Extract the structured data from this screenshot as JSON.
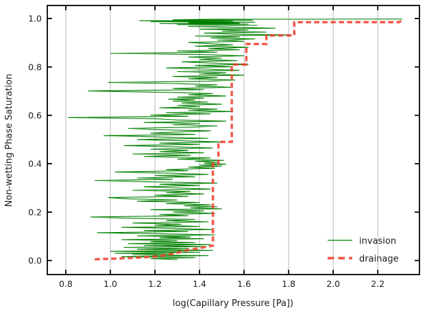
{
  "figure": {
    "background": "#ffffff",
    "text_color": "#1a1a1a",
    "grid_color": "#b0b0b0",
    "spine_color": "#000000"
  },
  "chart_data": {
    "type": "line",
    "title": "",
    "xlabel": "log(Capillary Pressure [Pa])",
    "ylabel": "Non-wetting Phase Saturation",
    "xlim": [
      0.717,
      2.387
    ],
    "ylim": [
      -0.058,
      1.054
    ],
    "x_ticks": [
      0.8,
      1.0,
      1.2,
      1.4,
      1.6,
      1.8,
      2.0,
      2.2
    ],
    "y_ticks": [
      0.0,
      0.2,
      0.4,
      0.6,
      0.8,
      1.0
    ],
    "grid": "vertical-only",
    "tick_direction": "in",
    "legend_position": "lower right",
    "legend_frame": false,
    "series": [
      {
        "name": "invasion",
        "color": "#008000",
        "opacity": 1,
        "line_style": "solid",
        "line_width": 1.1,
        "points": [
          [
            1.3,
            0.004
          ],
          [
            1.18,
            0.008
          ],
          [
            1.38,
            0.012
          ],
          [
            1.05,
            0.016
          ],
          [
            1.44,
            0.02
          ],
          [
            1.1,
            0.024
          ],
          [
            1.27,
            0.027
          ],
          [
            1.02,
            0.03
          ],
          [
            1.4,
            0.034
          ],
          [
            1.0,
            0.038
          ],
          [
            1.46,
            0.042
          ],
          [
            1.12,
            0.046
          ],
          [
            1.35,
            0.05
          ],
          [
            1.06,
            0.054
          ],
          [
            1.43,
            0.058
          ],
          [
            1.15,
            0.062
          ],
          [
            1.45,
            0.066
          ],
          [
            1.08,
            0.07
          ],
          [
            1.38,
            0.074
          ],
          [
            1.18,
            0.078
          ],
          [
            1.3,
            0.082
          ],
          [
            1.05,
            0.086
          ],
          [
            1.42,
            0.09
          ],
          [
            1.22,
            0.094
          ],
          [
            1.36,
            0.098
          ],
          [
            1.12,
            0.102
          ],
          [
            1.47,
            0.106
          ],
          [
            1.25,
            0.11
          ],
          [
            0.94,
            0.115
          ],
          [
            1.35,
            0.12
          ],
          [
            1.15,
            0.124
          ],
          [
            1.46,
            0.128
          ],
          [
            1.28,
            0.133
          ],
          [
            1.05,
            0.137
          ],
          [
            1.4,
            0.141
          ],
          [
            1.2,
            0.146
          ],
          [
            1.32,
            0.15
          ],
          [
            1.1,
            0.155
          ],
          [
            1.44,
            0.16
          ],
          [
            1.25,
            0.165
          ],
          [
            1.38,
            0.17
          ],
          [
            1.07,
            0.175
          ],
          [
            0.91,
            0.18
          ],
          [
            1.35,
            0.185
          ],
          [
            1.22,
            0.19
          ],
          [
            1.47,
            0.195
          ],
          [
            1.28,
            0.2
          ],
          [
            1.42,
            0.205
          ],
          [
            1.18,
            0.21
          ],
          [
            1.5,
            0.214
          ],
          [
            1.36,
            0.218
          ],
          [
            1.48,
            0.222
          ],
          [
            1.33,
            0.226
          ],
          [
            1.45,
            0.23
          ],
          [
            1.25,
            0.235
          ],
          [
            1.4,
            0.24
          ],
          [
            1.12,
            0.245
          ],
          [
            1.3,
            0.25
          ],
          [
            1.08,
            0.255
          ],
          [
            0.99,
            0.26
          ],
          [
            1.35,
            0.265
          ],
          [
            1.2,
            0.27
          ],
          [
            1.42,
            0.275
          ],
          [
            1.25,
            0.28
          ],
          [
            1.36,
            0.285
          ],
          [
            1.1,
            0.29
          ],
          [
            1.45,
            0.295
          ],
          [
            1.3,
            0.3
          ],
          [
            1.15,
            0.305
          ],
          [
            1.4,
            0.31
          ],
          [
            1.22,
            0.315
          ],
          [
            1.48,
            0.32
          ],
          [
            1.18,
            0.325
          ],
          [
            0.93,
            0.331
          ],
          [
            1.28,
            0.336
          ],
          [
            1.12,
            0.341
          ],
          [
            1.38,
            0.346
          ],
          [
            1.2,
            0.351
          ],
          [
            1.44,
            0.356
          ],
          [
            1.3,
            0.36
          ],
          [
            1.02,
            0.366
          ],
          [
            1.35,
            0.371
          ],
          [
            1.25,
            0.376
          ],
          [
            1.47,
            0.381
          ],
          [
            1.35,
            0.386
          ],
          [
            1.5,
            0.39
          ],
          [
            1.4,
            0.394
          ],
          [
            1.52,
            0.398
          ],
          [
            1.42,
            0.402
          ],
          [
            1.48,
            0.406
          ],
          [
            1.38,
            0.41
          ],
          [
            1.51,
            0.414
          ],
          [
            1.3,
            0.419
          ],
          [
            1.45,
            0.424
          ],
          [
            1.15,
            0.43
          ],
          [
            1.36,
            0.435
          ],
          [
            1.1,
            0.44
          ],
          [
            1.42,
            0.445
          ],
          [
            1.22,
            0.45
          ],
          [
            1.35,
            0.455
          ],
          [
            1.18,
            0.46
          ],
          [
            1.46,
            0.465
          ],
          [
            1.28,
            0.47
          ],
          [
            1.06,
            0.475
          ],
          [
            1.4,
            0.48
          ],
          [
            1.22,
            0.485
          ],
          [
            1.5,
            0.49
          ],
          [
            1.32,
            0.495
          ],
          [
            1.12,
            0.5
          ],
          [
            1.44,
            0.505
          ],
          [
            1.25,
            0.51
          ],
          [
            0.97,
            0.516
          ],
          [
            1.38,
            0.521
          ],
          [
            1.18,
            0.526
          ],
          [
            1.3,
            0.531
          ],
          [
            1.45,
            0.536
          ],
          [
            1.2,
            0.541
          ],
          [
            1.08,
            0.546
          ],
          [
            1.36,
            0.551
          ],
          [
            1.48,
            0.556
          ],
          [
            1.28,
            0.561
          ],
          [
            1.4,
            0.566
          ],
          [
            1.15,
            0.571
          ],
          [
            1.52,
            0.576
          ],
          [
            1.3,
            0.581
          ],
          [
            1.2,
            0.586
          ],
          [
            0.81,
            0.591
          ],
          [
            1.35,
            0.596
          ],
          [
            1.18,
            0.601
          ],
          [
            1.45,
            0.606
          ],
          [
            1.25,
            0.611
          ],
          [
            1.55,
            0.616
          ],
          [
            1.35,
            0.621
          ],
          [
            1.48,
            0.626
          ],
          [
            1.22,
            0.631
          ],
          [
            1.4,
            0.636
          ],
          [
            1.3,
            0.641
          ],
          [
            1.5,
            0.646
          ],
          [
            1.32,
            0.651
          ],
          [
            1.44,
            0.655
          ],
          [
            1.28,
            0.659
          ],
          [
            1.38,
            0.663
          ],
          [
            1.26,
            0.667
          ],
          [
            1.42,
            0.671
          ],
          [
            1.3,
            0.675
          ],
          [
            1.52,
            0.68
          ],
          [
            1.35,
            0.685
          ],
          [
            1.46,
            0.69
          ],
          [
            1.25,
            0.695
          ],
          [
            0.9,
            0.701
          ],
          [
            1.42,
            0.706
          ],
          [
            1.28,
            0.711
          ],
          [
            1.55,
            0.716
          ],
          [
            1.38,
            0.721
          ],
          [
            1.48,
            0.726
          ],
          [
            1.3,
            0.731
          ],
          [
            0.99,
            0.736
          ],
          [
            1.44,
            0.741
          ],
          [
            1.56,
            0.746
          ],
          [
            1.35,
            0.751
          ],
          [
            1.48,
            0.756
          ],
          [
            1.28,
            0.761
          ],
          [
            1.6,
            0.766
          ],
          [
            1.4,
            0.771
          ],
          [
            1.52,
            0.776
          ],
          [
            1.3,
            0.781
          ],
          [
            1.58,
            0.786
          ],
          [
            1.42,
            0.791
          ],
          [
            1.25,
            0.796
          ],
          [
            1.55,
            0.801
          ],
          [
            1.38,
            0.806
          ],
          [
            1.62,
            0.811
          ],
          [
            1.45,
            0.816
          ],
          [
            1.32,
            0.821
          ],
          [
            1.57,
            0.826
          ],
          [
            1.4,
            0.831
          ],
          [
            1.5,
            0.836
          ],
          [
            1.35,
            0.841
          ],
          [
            1.6,
            0.846
          ],
          [
            1.42,
            0.851
          ],
          [
            1.0,
            0.856
          ],
          [
            1.48,
            0.861
          ],
          [
            1.3,
            0.866
          ],
          [
            1.58,
            0.871
          ],
          [
            1.44,
            0.876
          ],
          [
            1.62,
            0.881
          ],
          [
            1.38,
            0.886
          ],
          [
            1.55,
            0.891
          ],
          [
            1.45,
            0.896
          ],
          [
            1.35,
            0.901
          ],
          [
            1.6,
            0.906
          ],
          [
            1.48,
            0.911
          ],
          [
            1.65,
            0.916
          ],
          [
            1.45,
            0.92
          ],
          [
            1.58,
            0.924
          ],
          [
            1.38,
            0.928
          ],
          [
            1.81,
            0.932
          ],
          [
            1.55,
            0.936
          ],
          [
            1.42,
            0.94
          ],
          [
            1.7,
            0.944
          ],
          [
            1.5,
            0.948
          ],
          [
            1.62,
            0.952
          ],
          [
            1.4,
            0.956
          ],
          [
            1.74,
            0.96
          ],
          [
            1.52,
            0.964
          ],
          [
            1.35,
            0.968
          ],
          [
            1.66,
            0.972
          ],
          [
            1.3,
            0.975
          ],
          [
            1.62,
            0.977
          ],
          [
            1.22,
            0.979
          ],
          [
            1.58,
            0.981
          ],
          [
            1.35,
            0.983
          ],
          [
            1.65,
            0.985
          ],
          [
            1.18,
            0.987
          ],
          [
            1.55,
            0.989
          ],
          [
            1.13,
            0.991
          ],
          [
            1.64,
            0.993
          ],
          [
            1.28,
            0.995
          ],
          [
            1.45,
            0.997
          ],
          [
            2.31,
            0.998
          ]
        ]
      },
      {
        "name": "drainage",
        "color": "#f03c2b",
        "opacity": 0.85,
        "line_style": "dashed",
        "line_width": 3.5,
        "points": [
          [
            0.93,
            0.005
          ],
          [
            1.02,
            0.008
          ],
          [
            1.12,
            0.012
          ],
          [
            1.2,
            0.016
          ],
          [
            1.25,
            0.022
          ],
          [
            1.29,
            0.03
          ],
          [
            1.33,
            0.04
          ],
          [
            1.37,
            0.047
          ],
          [
            1.41,
            0.053
          ],
          [
            1.44,
            0.058
          ],
          [
            1.46,
            0.062
          ],
          [
            1.46,
            0.4
          ],
          [
            1.485,
            0.4
          ],
          [
            1.485,
            0.49
          ],
          [
            1.545,
            0.49
          ],
          [
            1.545,
            0.81
          ],
          [
            1.61,
            0.81
          ],
          [
            1.61,
            0.895
          ],
          [
            1.7,
            0.895
          ],
          [
            1.7,
            0.93
          ],
          [
            1.825,
            0.93
          ],
          [
            1.825,
            0.985
          ],
          [
            2.295,
            0.985
          ],
          [
            2.305,
            0.99
          ]
        ]
      }
    ]
  },
  "legend": {
    "items": [
      {
        "label": "invasion"
      },
      {
        "label": "drainage"
      }
    ]
  }
}
